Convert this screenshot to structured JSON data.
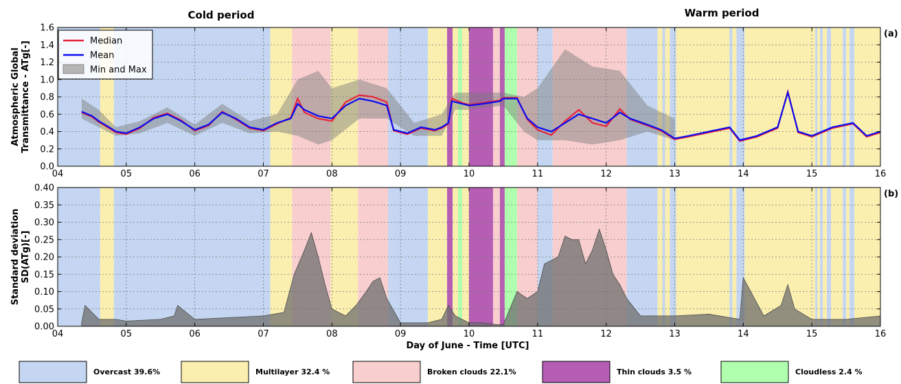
{
  "chart_data": [
    {
      "type": "line",
      "panel_label": "(a)",
      "ylabel_lines": [
        "Atmospheric Global",
        "Transmittance - ATg[-]"
      ],
      "xlim": [
        4,
        16
      ],
      "ylim": [
        0,
        1.6
      ],
      "yticks": [
        "0.0",
        "0.2",
        "0.4",
        "0.6",
        "0.8",
        "1.0",
        "1.2",
        "1.4",
        "1.6"
      ],
      "xticks": [
        "04",
        "05",
        "06",
        "07",
        "08",
        "09",
        "10",
        "11",
        "12",
        "13",
        "14",
        "15",
        "16"
      ],
      "grid": true,
      "legend": {
        "placement": "top-left",
        "entries": [
          {
            "label": "Median",
            "color": "#e8233a",
            "kind": "line"
          },
          {
            "label": "Mean",
            "color": "#0a0af0",
            "kind": "line"
          },
          {
            "label": "Min and Max",
            "color": "#b5b5b5",
            "kind": "patch"
          }
        ]
      },
      "series": [
        {
          "name": "Mean",
          "color": "#0a0af0",
          "x": [
            4.35,
            4.5,
            4.6,
            4.75,
            4.85,
            5.0,
            5.2,
            5.4,
            5.6,
            5.8,
            6.0,
            6.2,
            6.4,
            6.6,
            6.8,
            7.0,
            7.2,
            7.4,
            7.5,
            7.6,
            7.8,
            8.0,
            8.2,
            8.4,
            8.6,
            8.8,
            8.9,
            9.1,
            9.3,
            9.5,
            9.6,
            9.7,
            9.75,
            9.9,
            10.0,
            10.2,
            10.45,
            10.5,
            10.7,
            10.85,
            11.0,
            11.2,
            11.4,
            11.6,
            11.8,
            12.0,
            12.2,
            12.35,
            12.6,
            12.8,
            13.0,
            13.2,
            13.5,
            13.8,
            13.95,
            14.2,
            14.5,
            14.65,
            14.8,
            15.0,
            15.3,
            15.6,
            15.8,
            16.0
          ],
          "y": [
            0.63,
            0.58,
            0.52,
            0.45,
            0.4,
            0.38,
            0.45,
            0.55,
            0.6,
            0.52,
            0.42,
            0.48,
            0.62,
            0.55,
            0.45,
            0.42,
            0.5,
            0.55,
            0.72,
            0.65,
            0.58,
            0.55,
            0.7,
            0.78,
            0.75,
            0.7,
            0.42,
            0.38,
            0.45,
            0.42,
            0.45,
            0.5,
            0.75,
            0.72,
            0.7,
            0.72,
            0.75,
            0.78,
            0.78,
            0.55,
            0.45,
            0.4,
            0.5,
            0.6,
            0.55,
            0.5,
            0.62,
            0.55,
            0.48,
            0.42,
            0.32,
            0.35,
            0.4,
            0.45,
            0.3,
            0.35,
            0.45,
            0.85,
            0.4,
            0.35,
            0.45,
            0.5,
            0.35,
            0.4
          ]
        },
        {
          "name": "Median",
          "color": "#e8233a",
          "x": [
            4.35,
            4.5,
            4.6,
            4.75,
            4.85,
            5.0,
            5.2,
            5.4,
            5.6,
            5.8,
            6.0,
            6.2,
            6.4,
            6.6,
            6.8,
            7.0,
            7.2,
            7.4,
            7.5,
            7.6,
            7.8,
            8.0,
            8.2,
            8.4,
            8.6,
            8.8,
            8.9,
            9.1,
            9.3,
            9.5,
            9.6,
            9.7,
            9.75,
            9.9,
            10.0,
            10.2,
            10.45,
            10.5,
            10.7,
            10.85,
            11.0,
            11.2,
            11.4,
            11.6,
            11.8,
            12.0,
            12.2,
            12.35,
            12.6,
            12.8,
            13.0,
            13.2,
            13.5,
            13.8,
            13.95,
            14.2,
            14.5,
            14.65,
            14.8,
            15.0,
            15.3,
            15.6,
            15.8,
            16.0
          ],
          "y": [
            0.62,
            0.57,
            0.51,
            0.44,
            0.39,
            0.37,
            0.44,
            0.56,
            0.61,
            0.53,
            0.41,
            0.47,
            0.63,
            0.54,
            0.44,
            0.41,
            0.49,
            0.56,
            0.78,
            0.62,
            0.55,
            0.52,
            0.74,
            0.82,
            0.8,
            0.74,
            0.41,
            0.37,
            0.44,
            0.41,
            0.44,
            0.49,
            0.78,
            0.73,
            0.71,
            0.73,
            0.76,
            0.79,
            0.79,
            0.54,
            0.42,
            0.36,
            0.52,
            0.65,
            0.5,
            0.46,
            0.66,
            0.54,
            0.47,
            0.41,
            0.31,
            0.34,
            0.39,
            0.44,
            0.29,
            0.34,
            0.44,
            0.86,
            0.39,
            0.34,
            0.44,
            0.49,
            0.34,
            0.39
          ]
        },
        {
          "name": "Min",
          "color": "#b5b5b5",
          "x": [
            4.35,
            4.6,
            4.85,
            5.2,
            5.6,
            6.0,
            6.4,
            6.8,
            7.2,
            7.5,
            7.8,
            8.0,
            8.4,
            8.8,
            9.2,
            9.6,
            9.8,
            10.0,
            10.5,
            10.8,
            11.0,
            11.4,
            11.8,
            12.2,
            12.6,
            13.0
          ],
          "y": [
            0.55,
            0.45,
            0.35,
            0.38,
            0.5,
            0.35,
            0.5,
            0.38,
            0.4,
            0.35,
            0.25,
            0.3,
            0.55,
            0.55,
            0.35,
            0.35,
            0.65,
            0.65,
            0.7,
            0.4,
            0.3,
            0.3,
            0.25,
            0.3,
            0.4,
            0.3
          ]
        },
        {
          "name": "Max",
          "color": "#b5b5b5",
          "x": [
            4.35,
            4.6,
            4.85,
            5.2,
            5.6,
            6.0,
            6.4,
            6.8,
            7.2,
            7.5,
            7.8,
            8.0,
            8.4,
            8.8,
            9.2,
            9.6,
            9.8,
            10.0,
            10.5,
            10.8,
            11.0,
            11.4,
            11.8,
            12.2,
            12.6,
            13.0
          ],
          "y": [
            0.78,
            0.65,
            0.45,
            0.52,
            0.68,
            0.48,
            0.72,
            0.52,
            0.6,
            1.0,
            1.1,
            0.9,
            1.0,
            0.9,
            0.5,
            0.6,
            0.85,
            0.85,
            0.85,
            0.8,
            0.9,
            1.35,
            1.15,
            1.1,
            0.7,
            0.55
          ]
        }
      ]
    },
    {
      "type": "line",
      "panel_label": "(b)",
      "ylabel_lines": [
        "Standard deviation",
        "SD(ATg)[-]"
      ],
      "xlabel": "Day of June - Time [UTC]",
      "xlim": [
        4,
        16
      ],
      "ylim": [
        0,
        0.4
      ],
      "yticks": [
        "0.00",
        "0.05",
        "0.10",
        "0.15",
        "0.20",
        "0.25",
        "0.30",
        "0.35",
        "0.40"
      ],
      "xticks": [
        "04",
        "05",
        "06",
        "07",
        "08",
        "09",
        "10",
        "11",
        "12",
        "13",
        "14",
        "15",
        "16"
      ],
      "grid": true,
      "series": [
        {
          "name": "SD",
          "color": "#4a4a4a",
          "x": [
            4.35,
            4.4,
            4.6,
            4.85,
            5.0,
            5.5,
            5.7,
            5.75,
            6.0,
            6.5,
            7.0,
            7.3,
            7.45,
            7.6,
            7.7,
            7.8,
            7.9,
            8.0,
            8.2,
            8.35,
            8.5,
            8.6,
            8.7,
            8.8,
            9.0,
            9.4,
            9.6,
            9.7,
            9.8,
            9.9,
            10.0,
            10.2,
            10.4,
            10.45,
            10.5,
            10.7,
            10.85,
            11.0,
            11.1,
            11.3,
            11.4,
            11.5,
            11.6,
            11.7,
            11.8,
            11.9,
            12.0,
            12.1,
            12.2,
            12.3,
            12.5,
            13.0,
            13.5,
            13.95,
            14.0,
            14.3,
            14.55,
            14.65,
            14.75,
            15.0,
            15.5,
            16.0
          ],
          "y": [
            0.01,
            0.06,
            0.02,
            0.02,
            0.015,
            0.02,
            0.03,
            0.06,
            0.02,
            0.025,
            0.03,
            0.04,
            0.15,
            0.22,
            0.27,
            0.2,
            0.12,
            0.05,
            0.03,
            0.06,
            0.1,
            0.13,
            0.14,
            0.08,
            0.01,
            0.01,
            0.02,
            0.06,
            0.03,
            0.02,
            0.01,
            0.01,
            0.005,
            0.005,
            0.005,
            0.1,
            0.08,
            0.1,
            0.18,
            0.2,
            0.26,
            0.25,
            0.25,
            0.18,
            0.22,
            0.28,
            0.22,
            0.15,
            0.12,
            0.08,
            0.03,
            0.03,
            0.035,
            0.02,
            0.14,
            0.03,
            0.06,
            0.12,
            0.05,
            0.02,
            0.02,
            0.03
          ]
        }
      ]
    }
  ],
  "figure": {
    "period_titles": [
      "Cold period",
      "Warm period"
    ],
    "category_colors": {
      "overcast": "#c4d6f1",
      "multilayer": "#fbefaf",
      "broken": "#f8cece",
      "thin": "#b55eb4",
      "cloudless": "#afffaf"
    },
    "bands": [
      {
        "start": 4.0,
        "end": 4.62,
        "cat": "overcast"
      },
      {
        "start": 4.62,
        "end": 4.82,
        "cat": "multilayer"
      },
      {
        "start": 4.82,
        "end": 7.1,
        "cat": "overcast"
      },
      {
        "start": 7.1,
        "end": 7.42,
        "cat": "multilayer"
      },
      {
        "start": 7.42,
        "end": 7.98,
        "cat": "broken"
      },
      {
        "start": 7.98,
        "end": 8.38,
        "cat": "multilayer"
      },
      {
        "start": 8.38,
        "end": 8.82,
        "cat": "broken"
      },
      {
        "start": 8.82,
        "end": 9.4,
        "cat": "overcast"
      },
      {
        "start": 9.4,
        "end": 9.68,
        "cat": "multilayer"
      },
      {
        "start": 9.68,
        "end": 9.76,
        "cat": "thin"
      },
      {
        "start": 9.76,
        "end": 9.84,
        "cat": "multilayer"
      },
      {
        "start": 9.84,
        "end": 9.9,
        "cat": "cloudless"
      },
      {
        "start": 9.9,
        "end": 10.0,
        "cat": "multilayer"
      },
      {
        "start": 10.0,
        "end": 10.35,
        "cat": "thin"
      },
      {
        "start": 10.35,
        "end": 10.45,
        "cat": "broken"
      },
      {
        "start": 10.45,
        "end": 10.52,
        "cat": "thin"
      },
      {
        "start": 10.52,
        "end": 10.7,
        "cat": "cloudless"
      },
      {
        "start": 10.7,
        "end": 11.0,
        "cat": "broken"
      },
      {
        "start": 11.0,
        "end": 11.22,
        "cat": "overcast"
      },
      {
        "start": 11.22,
        "end": 12.3,
        "cat": "broken"
      },
      {
        "start": 12.3,
        "end": 12.75,
        "cat": "overcast"
      },
      {
        "start": 12.75,
        "end": 12.82,
        "cat": "multilayer"
      },
      {
        "start": 12.82,
        "end": 12.86,
        "cat": "overcast"
      },
      {
        "start": 12.86,
        "end": 12.93,
        "cat": "multilayer"
      },
      {
        "start": 12.93,
        "end": 13.02,
        "cat": "overcast"
      },
      {
        "start": 13.02,
        "end": 13.8,
        "cat": "multilayer"
      },
      {
        "start": 13.8,
        "end": 13.84,
        "cat": "overcast"
      },
      {
        "start": 13.84,
        "end": 13.9,
        "cat": "multilayer"
      },
      {
        "start": 13.9,
        "end": 14.02,
        "cat": "overcast"
      },
      {
        "start": 14.02,
        "end": 15.05,
        "cat": "multilayer"
      },
      {
        "start": 15.05,
        "end": 15.08,
        "cat": "overcast"
      },
      {
        "start": 15.08,
        "end": 15.12,
        "cat": "multilayer"
      },
      {
        "start": 15.12,
        "end": 15.16,
        "cat": "overcast"
      },
      {
        "start": 15.16,
        "end": 15.22,
        "cat": "multilayer"
      },
      {
        "start": 15.22,
        "end": 15.28,
        "cat": "overcast"
      },
      {
        "start": 15.28,
        "end": 15.45,
        "cat": "multilayer"
      },
      {
        "start": 15.45,
        "end": 15.5,
        "cat": "overcast"
      },
      {
        "start": 15.5,
        "end": 15.55,
        "cat": "multilayer"
      },
      {
        "start": 15.55,
        "end": 15.62,
        "cat": "overcast"
      },
      {
        "start": 15.62,
        "end": 16.0,
        "cat": "multilayer"
      }
    ],
    "legend_bottom": [
      {
        "label": "Overcast 39.6%",
        "cat": "overcast"
      },
      {
        "label": "Multilayer 32.4 %",
        "cat": "multilayer"
      },
      {
        "label": "Broken clouds 22.1%",
        "cat": "broken"
      },
      {
        "label": "Thin clouds 3.5 %",
        "cat": "thin"
      },
      {
        "label": "Cloudless 2.4 %",
        "cat": "cloudless"
      }
    ]
  }
}
